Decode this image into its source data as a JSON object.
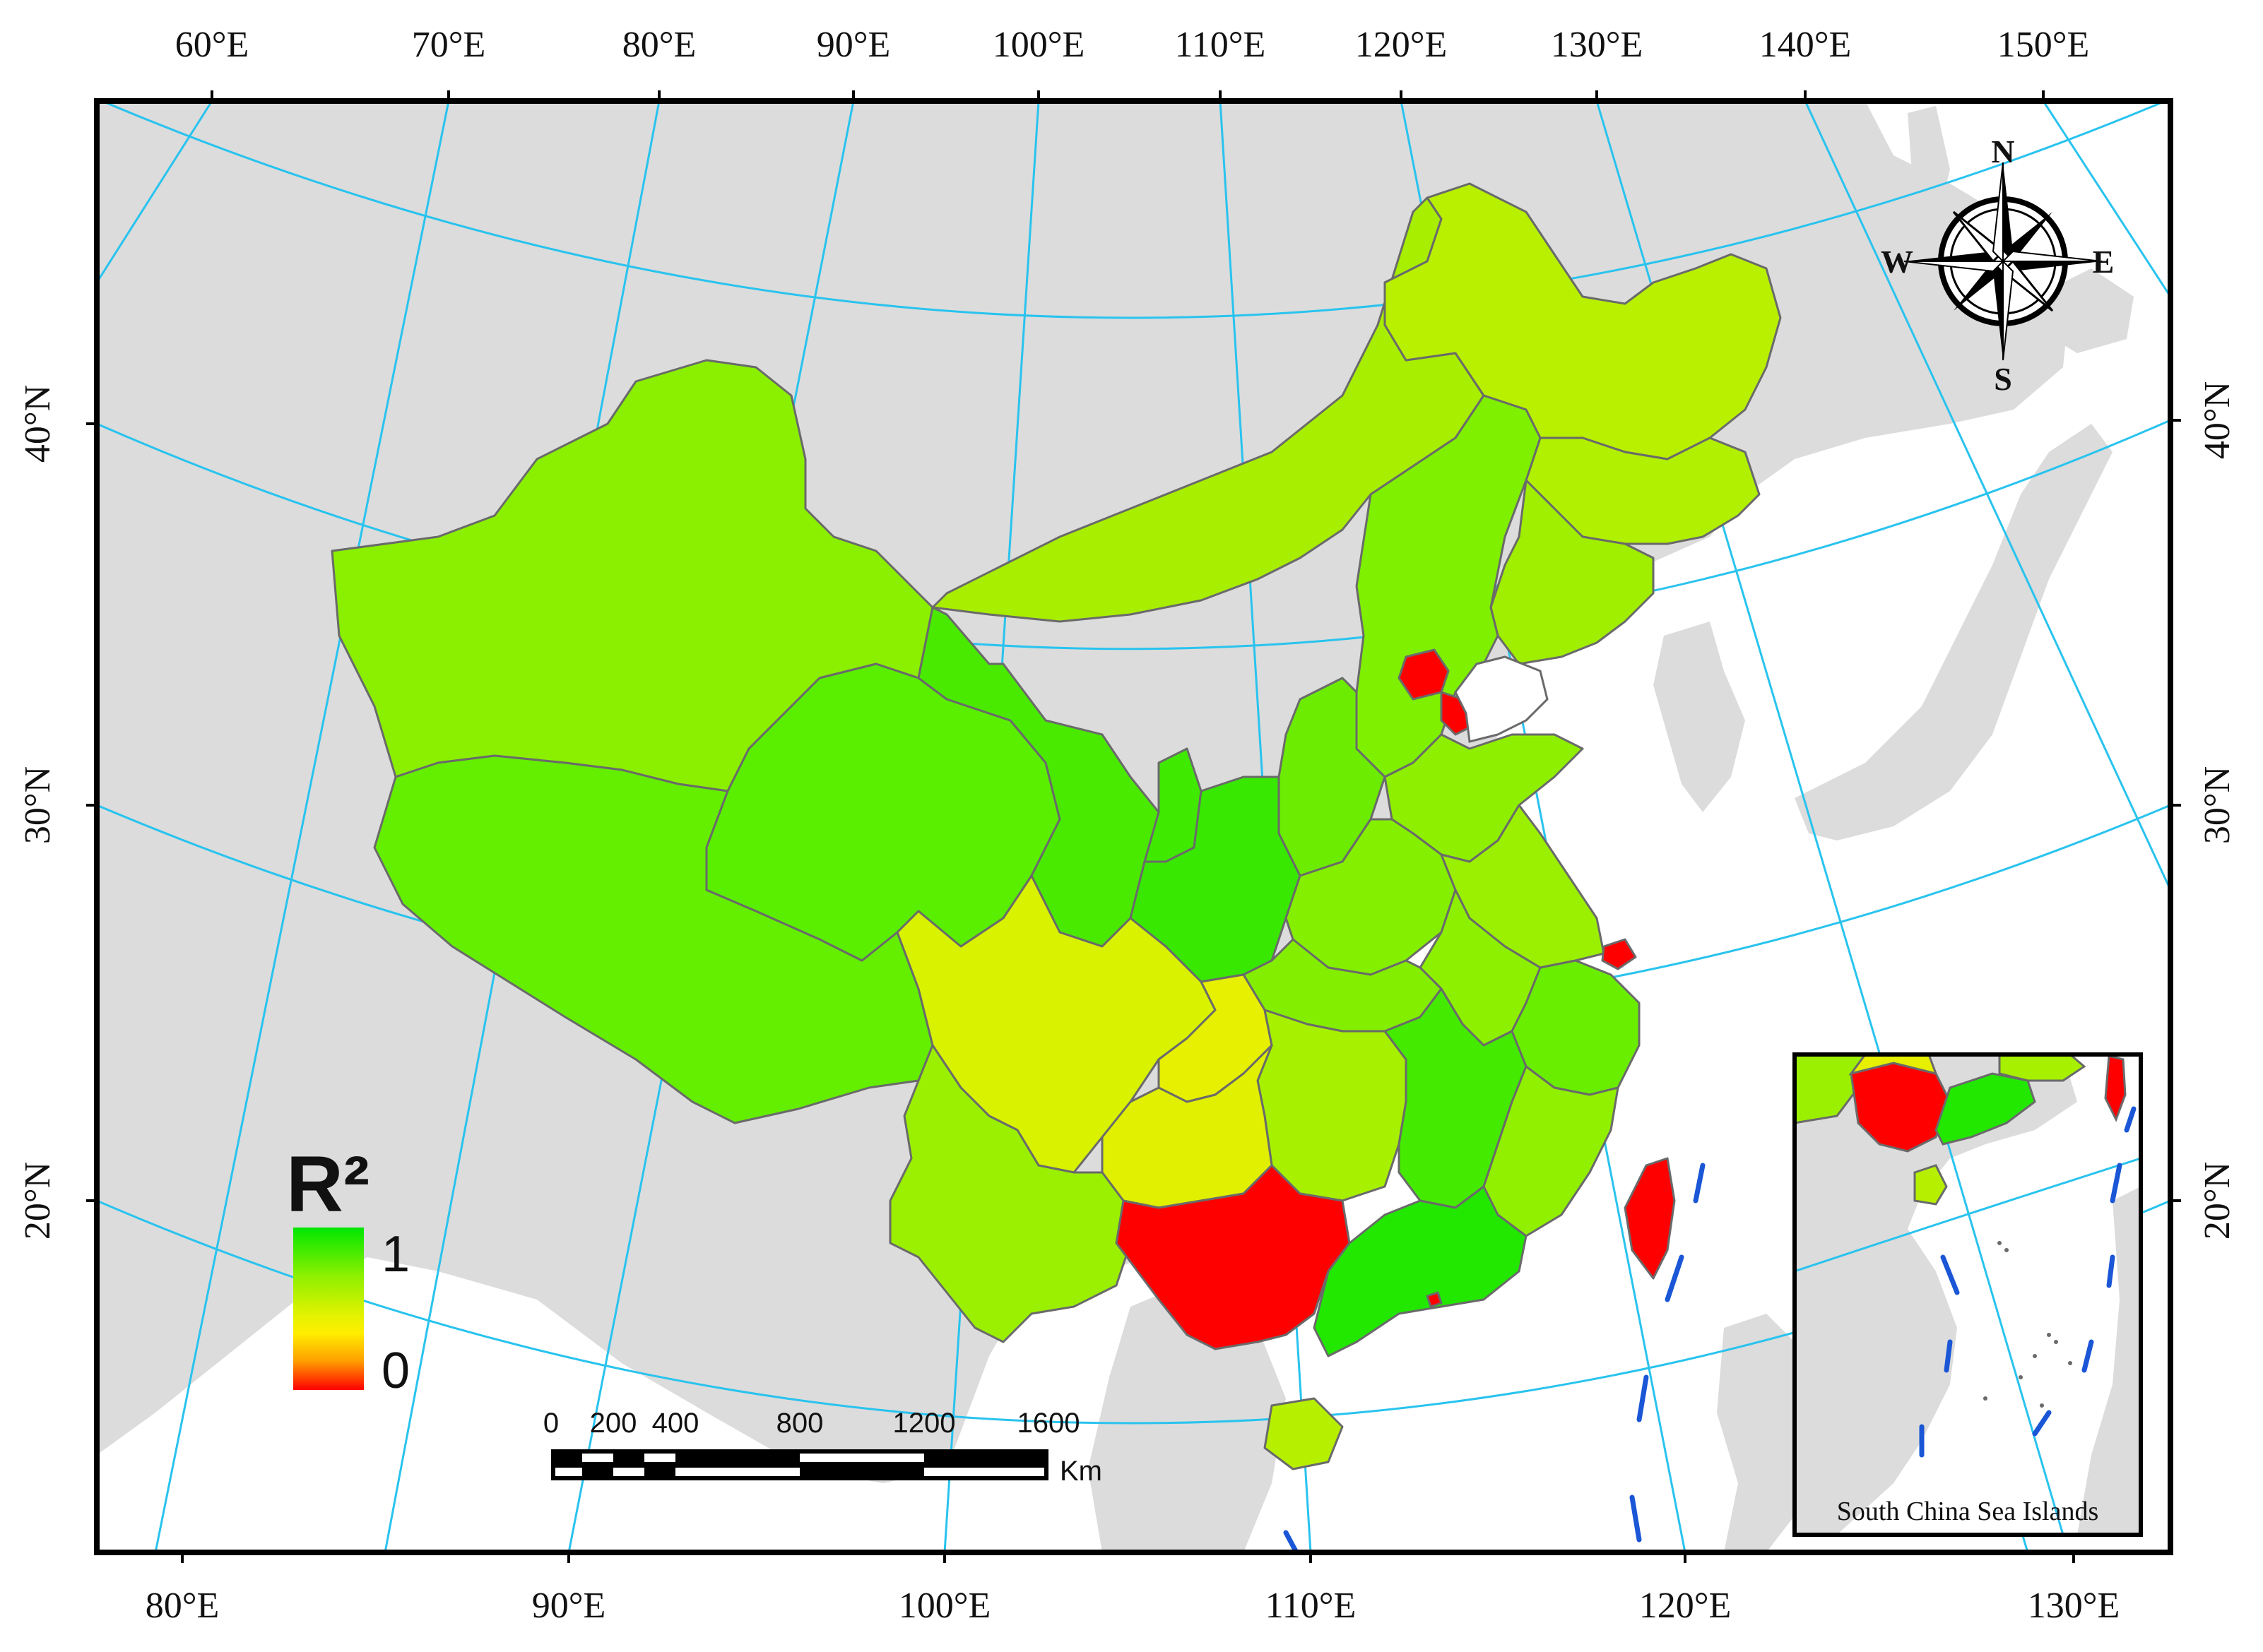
{
  "top_longitudes": [
    "60°E",
    "70°E",
    "80°E",
    "90°E",
    "100°E",
    "110°E",
    "120°E",
    "130°E",
    "140°E",
    "150°E"
  ],
  "bottom_longitudes": [
    "80°E",
    "90°E",
    "100°E",
    "110°E",
    "120°E",
    "130°E"
  ],
  "latitudes": [
    "40°N",
    "30°N",
    "20°N"
  ],
  "legend": {
    "title": "R²",
    "max_label": "1",
    "min_label": "0",
    "gradient_colors": [
      "#00e600",
      "#8ef000",
      "#e6f200",
      "#ffee00",
      "#ffa000",
      "#ff0000"
    ]
  },
  "scale_bar": {
    "ticks": [
      "0",
      "200",
      "400",
      "800",
      "1200",
      "1600"
    ],
    "unit": "Km"
  },
  "compass": {
    "north": "N",
    "south": "S",
    "east": "E",
    "west": "W"
  },
  "inset": {
    "title": "South China Sea Islands"
  },
  "colors": {
    "land_background": "#dcdcdc",
    "graticule": "#29c3ee",
    "province_border": "#6a6a6a",
    "high_r2": "#2ee800",
    "low_r2": "#ff0000",
    "boundary_dash": "#1a56d6"
  },
  "regions": [
    {
      "name": "Heilongjiang",
      "color": "#b8f000"
    },
    {
      "name": "Jilin",
      "color": "#b8f000"
    },
    {
      "name": "Liaoning",
      "color": "#a0ee00"
    },
    {
      "name": "Inner Mongolia",
      "color": "#a8ee00"
    },
    {
      "name": "Xinjiang",
      "color": "#8af000"
    },
    {
      "name": "Tibet",
      "color": "#64ee00"
    },
    {
      "name": "Qinghai",
      "color": "#5aee00"
    },
    {
      "name": "Gansu",
      "color": "#4aea00"
    },
    {
      "name": "Ningxia",
      "color": "#40ea00"
    },
    {
      "name": "Shaanxi",
      "color": "#38e800"
    },
    {
      "name": "Shanxi",
      "color": "#6cec00"
    },
    {
      "name": "Hebei",
      "color": "#7ef000"
    },
    {
      "name": "Beijing",
      "color": "#ff0000"
    },
    {
      "name": "Tianjin",
      "color": "#ff0000"
    },
    {
      "name": "Shandong",
      "color": "#8ef000"
    },
    {
      "name": "Henan",
      "color": "#84f000"
    },
    {
      "name": "Hubei",
      "color": "#84ee00"
    },
    {
      "name": "Jiangsu",
      "color": "#9af000"
    },
    {
      "name": "Anhui",
      "color": "#8cf000"
    },
    {
      "name": "Shanghai",
      "color": "#ff0000"
    },
    {
      "name": "Zhejiang",
      "color": "#6aee00"
    },
    {
      "name": "Sichuan",
      "color": "#d8f200"
    },
    {
      "name": "Chongqing",
      "color": "#e6f000"
    },
    {
      "name": "Guizhou",
      "color": "#e0f000"
    },
    {
      "name": "Hunan",
      "color": "#a6f000"
    },
    {
      "name": "Jiangxi",
      "color": "#44ea00"
    },
    {
      "name": "Fujian",
      "color": "#90f000"
    },
    {
      "name": "Yunnan",
      "color": "#9af000"
    },
    {
      "name": "Guangxi",
      "color": "#ff0000"
    },
    {
      "name": "Guangdong",
      "color": "#22e800"
    },
    {
      "name": "Hainan",
      "color": "#b6f000"
    },
    {
      "name": "Taiwan",
      "color": "#ff0000"
    },
    {
      "name": "Hong Kong",
      "color": "#ff0000"
    }
  ]
}
